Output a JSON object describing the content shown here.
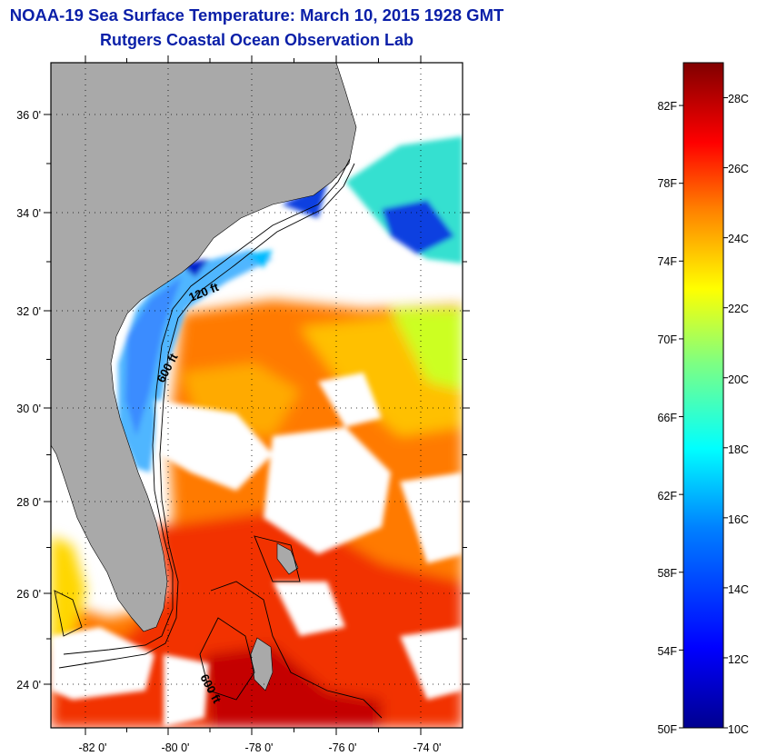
{
  "header": {
    "title": "NOAA-19 Sea Surface Temperature:  March 10, 2015 1928 GMT",
    "subtitle": "Rutgers Coastal Ocean Observation Lab"
  },
  "map": {
    "lon_range": [
      -83.0,
      -73.0
    ],
    "lat_range": [
      23.0,
      37.0
    ],
    "x_tick_labels": [
      "-82 0'",
      "-80 0'",
      "-78 0'",
      "-76 0'",
      "-74 0'"
    ],
    "y_tick_labels": [
      "36 0'",
      "34 0'",
      "32 0'",
      "30 0'",
      "28 0'",
      "26 0'",
      "24 0'"
    ],
    "grid": "dotted",
    "contour_labels": [
      "120 ft",
      "600 ft",
      "600 ft"
    ],
    "colors": {
      "land": "#a9a9a9",
      "no_data": "#ffffff",
      "title": "#0a1fa8"
    }
  },
  "colorbar": {
    "fahrenheit_labels": [
      "50F",
      "54F",
      "58F",
      "62F",
      "66F",
      "70F",
      "74F",
      "78F",
      "82F"
    ],
    "celsius_labels": [
      "10C",
      "12C",
      "14C",
      "16C",
      "18C",
      "20C",
      "22C",
      "24C",
      "26C",
      "28C"
    ],
    "celsius_range": [
      10,
      29
    ],
    "colors": [
      "#00008f",
      "#0000ff",
      "#0080ff",
      "#00ffff",
      "#80ff80",
      "#ffff00",
      "#ff8000",
      "#ff0000",
      "#800000"
    ]
  }
}
